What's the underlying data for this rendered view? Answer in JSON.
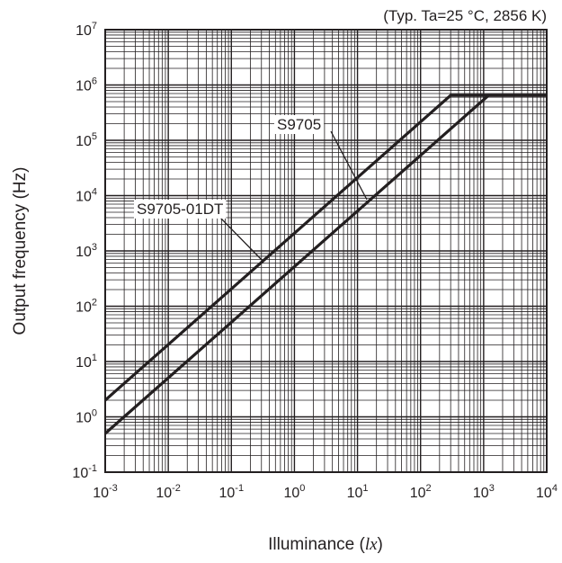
{
  "chart_data": {
    "type": "line",
    "title": "",
    "condition_note": "(Typ. Ta=25 °C, 2856 K)",
    "xlabel": {
      "text": "Illuminance (",
      "unit": "lx",
      "close": ")"
    },
    "ylabel": "Output frequency (Hz)",
    "x_scale": "log",
    "y_scale": "log",
    "xlim": [
      0.001,
      10000
    ],
    "ylim": [
      0.1,
      10000000
    ],
    "grid": true,
    "x_ticks": [
      {
        "base": "10",
        "exp": "-3",
        "value": 0.001
      },
      {
        "base": "10",
        "exp": "-2",
        "value": 0.01
      },
      {
        "base": "10",
        "exp": "-1",
        "value": 0.1
      },
      {
        "base": "10",
        "exp": "0",
        "value": 1
      },
      {
        "base": "10",
        "exp": "1",
        "value": 10
      },
      {
        "base": "10",
        "exp": "2",
        "value": 100
      },
      {
        "base": "10",
        "exp": "3",
        "value": 1000
      },
      {
        "base": "10",
        "exp": "4",
        "value": 10000
      }
    ],
    "y_ticks": [
      {
        "base": "10",
        "exp": "-1",
        "value": 0.1
      },
      {
        "base": "10",
        "exp": "0",
        "value": 1
      },
      {
        "base": "10",
        "exp": "1",
        "value": 10
      },
      {
        "base": "10",
        "exp": "2",
        "value": 100
      },
      {
        "base": "10",
        "exp": "3",
        "value": 1000
      },
      {
        "base": "10",
        "exp": "4",
        "value": 10000
      },
      {
        "base": "10",
        "exp": "5",
        "value": 100000
      },
      {
        "base": "10",
        "exp": "6",
        "value": 1000000
      },
      {
        "base": "10",
        "exp": "7",
        "value": 10000000
      }
    ],
    "series": [
      {
        "name": "S9705-01DT",
        "points": [
          [
            0.001,
            2
          ],
          [
            300,
            650000
          ],
          [
            10000,
            650000
          ]
        ]
      },
      {
        "name": "S9705",
        "points": [
          [
            0.001,
            0.5
          ],
          [
            1200,
            650000
          ],
          [
            10000,
            650000
          ]
        ]
      }
    ],
    "annotations": [
      {
        "text": "S9705",
        "series": "S9705"
      },
      {
        "text": "S9705-01DT",
        "series": "S9705-01DT"
      }
    ],
    "colors": {
      "line": "#231f20",
      "grid": "#231f20",
      "background": "#ffffff"
    }
  }
}
